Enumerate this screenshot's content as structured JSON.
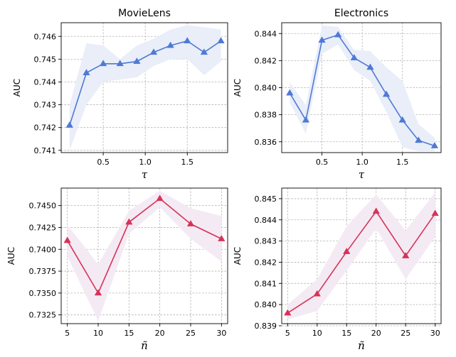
{
  "chart_data": [
    {
      "type": "line",
      "title": "MovieLens",
      "xlabel": "τ",
      "ylabel": "AUC",
      "xlim": [
        0.0,
        1.98
      ],
      "ylim": [
        0.7409,
        0.7466
      ],
      "xticks": [
        0.5,
        1.0,
        1.5
      ],
      "xtick_labels": [
        "0.5",
        "1.0",
        "1.5"
      ],
      "yticks": [
        0.741,
        0.742,
        0.743,
        0.744,
        0.745,
        0.746
      ],
      "ytick_labels": [
        "0.741",
        "0.742",
        "0.743",
        "0.744",
        "0.745",
        "0.746"
      ],
      "grid": true,
      "color": "#4f79d6",
      "band_color": "#e9eef8",
      "x": [
        0.1,
        0.3,
        0.5,
        0.7,
        0.9,
        1.1,
        1.3,
        1.5,
        1.7,
        1.9
      ],
      "values": [
        0.7421,
        0.7444,
        0.7448,
        0.7448,
        0.7449,
        0.7453,
        0.7456,
        0.7458,
        0.7453,
        0.7458
      ],
      "band_low": [
        0.741,
        0.743,
        0.744,
        0.7441,
        0.7442,
        0.7447,
        0.745,
        0.745,
        0.7443,
        0.7449
      ],
      "band_high": [
        0.743,
        0.7457,
        0.7456,
        0.745,
        0.7456,
        0.7459,
        0.7463,
        0.7465,
        0.7464,
        0.7463
      ]
    },
    {
      "type": "line",
      "title": "Electronics",
      "xlabel": "τ",
      "ylabel": "AUC",
      "xlim": [
        0.0,
        1.98
      ],
      "ylim": [
        0.8352,
        0.8448
      ],
      "xticks": [
        0.5,
        1.0,
        1.5
      ],
      "xtick_labels": [
        "0.5",
        "1.0",
        "1.5"
      ],
      "yticks": [
        0.836,
        0.838,
        0.84,
        0.842,
        0.844
      ],
      "ytick_labels": [
        "0.836",
        "0.838",
        "0.840",
        "0.842",
        "0.844"
      ],
      "grid": true,
      "color": "#4f79d6",
      "band_color": "#e9eef8",
      "x": [
        0.1,
        0.3,
        0.5,
        0.7,
        0.9,
        1.1,
        1.3,
        1.5,
        1.7,
        1.9
      ],
      "values": [
        0.8396,
        0.8376,
        0.8435,
        0.8439,
        0.8422,
        0.8415,
        0.8395,
        0.8376,
        0.8361,
        0.8357
      ],
      "band_low": [
        0.8389,
        0.8366,
        0.8425,
        0.8432,
        0.8413,
        0.8405,
        0.8382,
        0.8356,
        0.8353,
        0.8353
      ],
      "band_high": [
        0.8404,
        0.8387,
        0.8446,
        0.8445,
        0.8428,
        0.8427,
        0.8415,
        0.8405,
        0.8373,
        0.8363
      ]
    },
    {
      "type": "line",
      "title": "",
      "xlabel": "ñ",
      "ylabel": "AUC",
      "xlim": [
        4.0,
        31.0
      ],
      "ylim": [
        0.7315,
        0.747
      ],
      "xticks": [
        5,
        10,
        15,
        20,
        25,
        30
      ],
      "xtick_labels": [
        "5",
        "10",
        "15",
        "20",
        "25",
        "30"
      ],
      "yticks": [
        0.7325,
        0.735,
        0.7375,
        0.74,
        0.7425,
        0.745
      ],
      "ytick_labels": [
        "0.7325",
        "0.7350",
        "0.7375",
        "0.7400",
        "0.7425",
        "0.7450"
      ],
      "grid": true,
      "color": "#d63357",
      "band_color": "#f4eaf4",
      "x": [
        5,
        10,
        15,
        20,
        25,
        30
      ],
      "values": [
        0.741,
        0.735,
        0.7431,
        0.7458,
        0.7429,
        0.7412
      ],
      "band_low": [
        0.7392,
        0.7318,
        0.7418,
        0.7448,
        0.7412,
        0.7386
      ],
      "band_high": [
        0.7428,
        0.7383,
        0.7444,
        0.7467,
        0.7447,
        0.7438
      ]
    },
    {
      "type": "line",
      "title": "",
      "xlabel": "ñ",
      "ylabel": "AUC",
      "xlim": [
        4.0,
        31.0
      ],
      "ylim": [
        0.8391,
        0.8455
      ],
      "xticks": [
        5,
        10,
        15,
        20,
        25,
        30
      ],
      "xtick_labels": [
        "5",
        "10",
        "15",
        "20",
        "25",
        "30"
      ],
      "yticks": [
        0.839,
        0.84,
        0.841,
        0.842,
        0.843,
        0.844,
        0.845
      ],
      "ytick_labels": [
        "0.839",
        "0.840",
        "0.841",
        "0.842",
        "0.843",
        "0.844",
        "0.845"
      ],
      "grid": true,
      "color": "#d63357",
      "band_color": "#f4eaf4",
      "x": [
        5,
        10,
        15,
        20,
        25,
        30
      ],
      "values": [
        0.8396,
        0.8405,
        0.8425,
        0.8444,
        0.8423,
        0.8443
      ],
      "band_low": [
        0.8393,
        0.8397,
        0.8416,
        0.8436,
        0.8412,
        0.8432
      ],
      "band_high": [
        0.84,
        0.8412,
        0.8437,
        0.8452,
        0.8435,
        0.8453
      ]
    }
  ]
}
